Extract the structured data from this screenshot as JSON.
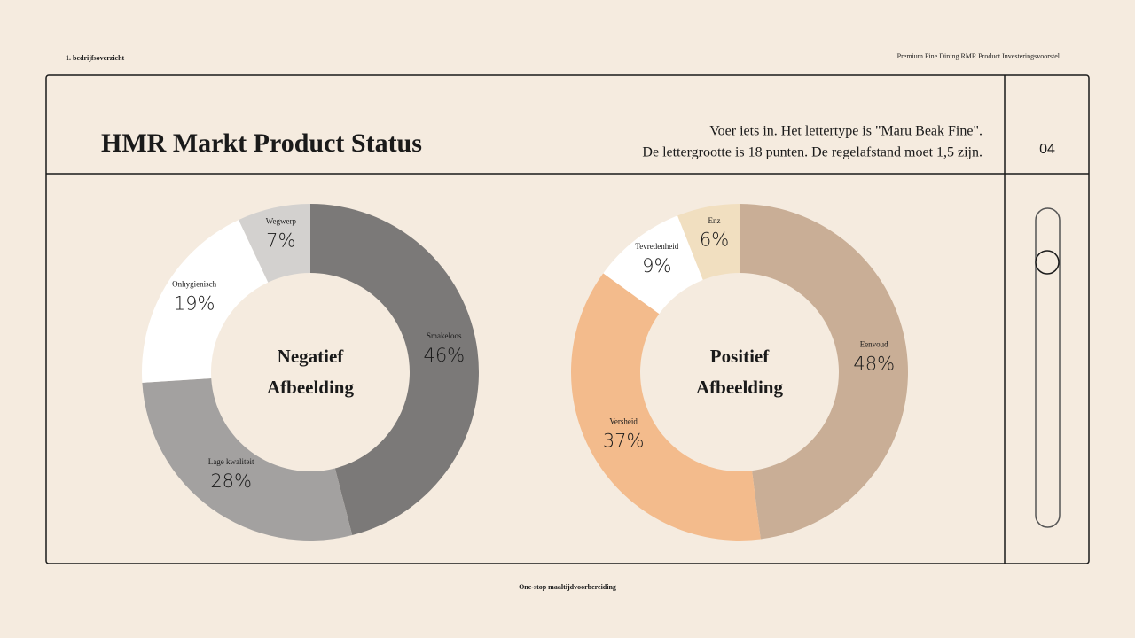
{
  "header": {
    "section": "1. bedrijfsoverzicht",
    "deck": "Premium Fine Dining RMR Product Investeringsvoorstel",
    "title": "HMR Markt Product Status",
    "description": [
      "Voer iets in. Het lettertype is \"Maru Beak Fine\".",
      "De lettergrootte is 18 punten. De regelafstand moet 1,5 zijn."
    ],
    "page": "04"
  },
  "footer": "One-stop maaltijdvoorbereiding",
  "chart_data": [
    {
      "type": "donut",
      "center_label": [
        "Negatief",
        "Afbeelding"
      ],
      "categories": [
        "Smakeloos",
        "Lage kwaliteit",
        "Onhygienisch",
        "Wegwerp"
      ],
      "values": [
        46,
        28,
        19,
        7
      ],
      "value_labels": [
        "46%",
        "28%",
        "19%",
        "7%"
      ],
      "colors": [
        "#7b7978",
        "#a3a1a0",
        "#ffffff",
        "#d3d1cf"
      ]
    },
    {
      "type": "donut",
      "center_label": [
        "Positief",
        "Afbeelding"
      ],
      "categories": [
        "Eenvoud",
        "Versheid",
        "Tevredenheid",
        "Enz"
      ],
      "values": [
        48,
        37,
        9,
        6
      ],
      "value_labels": [
        "48%",
        "37%",
        "9%",
        "6%"
      ],
      "colors": [
        "#c9ae96",
        "#f3bb8c",
        "#ffffff",
        "#f1dfc0"
      ]
    }
  ]
}
